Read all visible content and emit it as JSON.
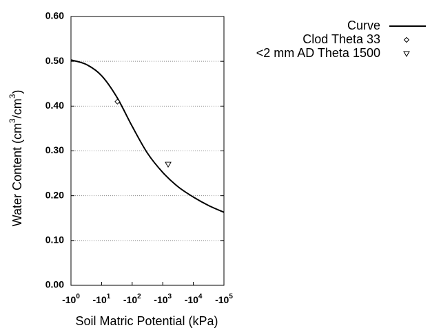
{
  "chart_data": {
    "type": "line",
    "xlabel": "Soil Matric Potential (kPa)",
    "ylabel": [
      "Water Content (cm",
      "3",
      "/cm",
      "3",
      ")"
    ],
    "xscale": "log-negative",
    "xlim": [
      -1,
      -100000
    ],
    "xticks": [
      {
        "value": -1,
        "label": "-10",
        "sup": "0"
      },
      {
        "value": -10,
        "label": "-10",
        "sup": "1"
      },
      {
        "value": -100,
        "label": "-10",
        "sup": "2"
      },
      {
        "value": -1000,
        "label": "-10",
        "sup": "3"
      },
      {
        "value": -10000,
        "label": "-10",
        "sup": "4"
      },
      {
        "value": -100000,
        "label": "-10",
        "sup": "5"
      }
    ],
    "ylim": [
      0,
      0.6
    ],
    "yticks": [
      {
        "value": 0,
        "label": "0.00"
      },
      {
        "value": 0.1,
        "label": "0.10"
      },
      {
        "value": 0.2,
        "label": "0.20"
      },
      {
        "value": 0.3,
        "label": "0.30"
      },
      {
        "value": 0.4,
        "label": "0.40"
      },
      {
        "value": 0.5,
        "label": "0.50"
      },
      {
        "value": 0.6,
        "label": "0.60"
      }
    ],
    "grid": true,
    "legend": "top-right-outside",
    "series": [
      {
        "name": "Curve",
        "color": "#000000",
        "mark": "line",
        "x": [
          -1,
          -3.16,
          -10,
          -31.6,
          -100,
          -316,
          -1000,
          -3162,
          -10000,
          -31623,
          -100000
        ],
        "values": [
          0.503,
          0.493,
          0.468,
          0.42,
          0.355,
          0.295,
          0.252,
          0.22,
          0.197,
          0.178,
          0.163
        ]
      },
      {
        "name": "Clod Theta 33",
        "color": "#000000",
        "mark": "diamond",
        "x": [
          -33
        ],
        "values": [
          0.41
        ]
      },
      {
        "name": "<2 mm AD Theta 1500",
        "color": "#000000",
        "mark": "triangle-down",
        "x": [
          -1500
        ],
        "values": [
          0.27
        ]
      }
    ]
  }
}
